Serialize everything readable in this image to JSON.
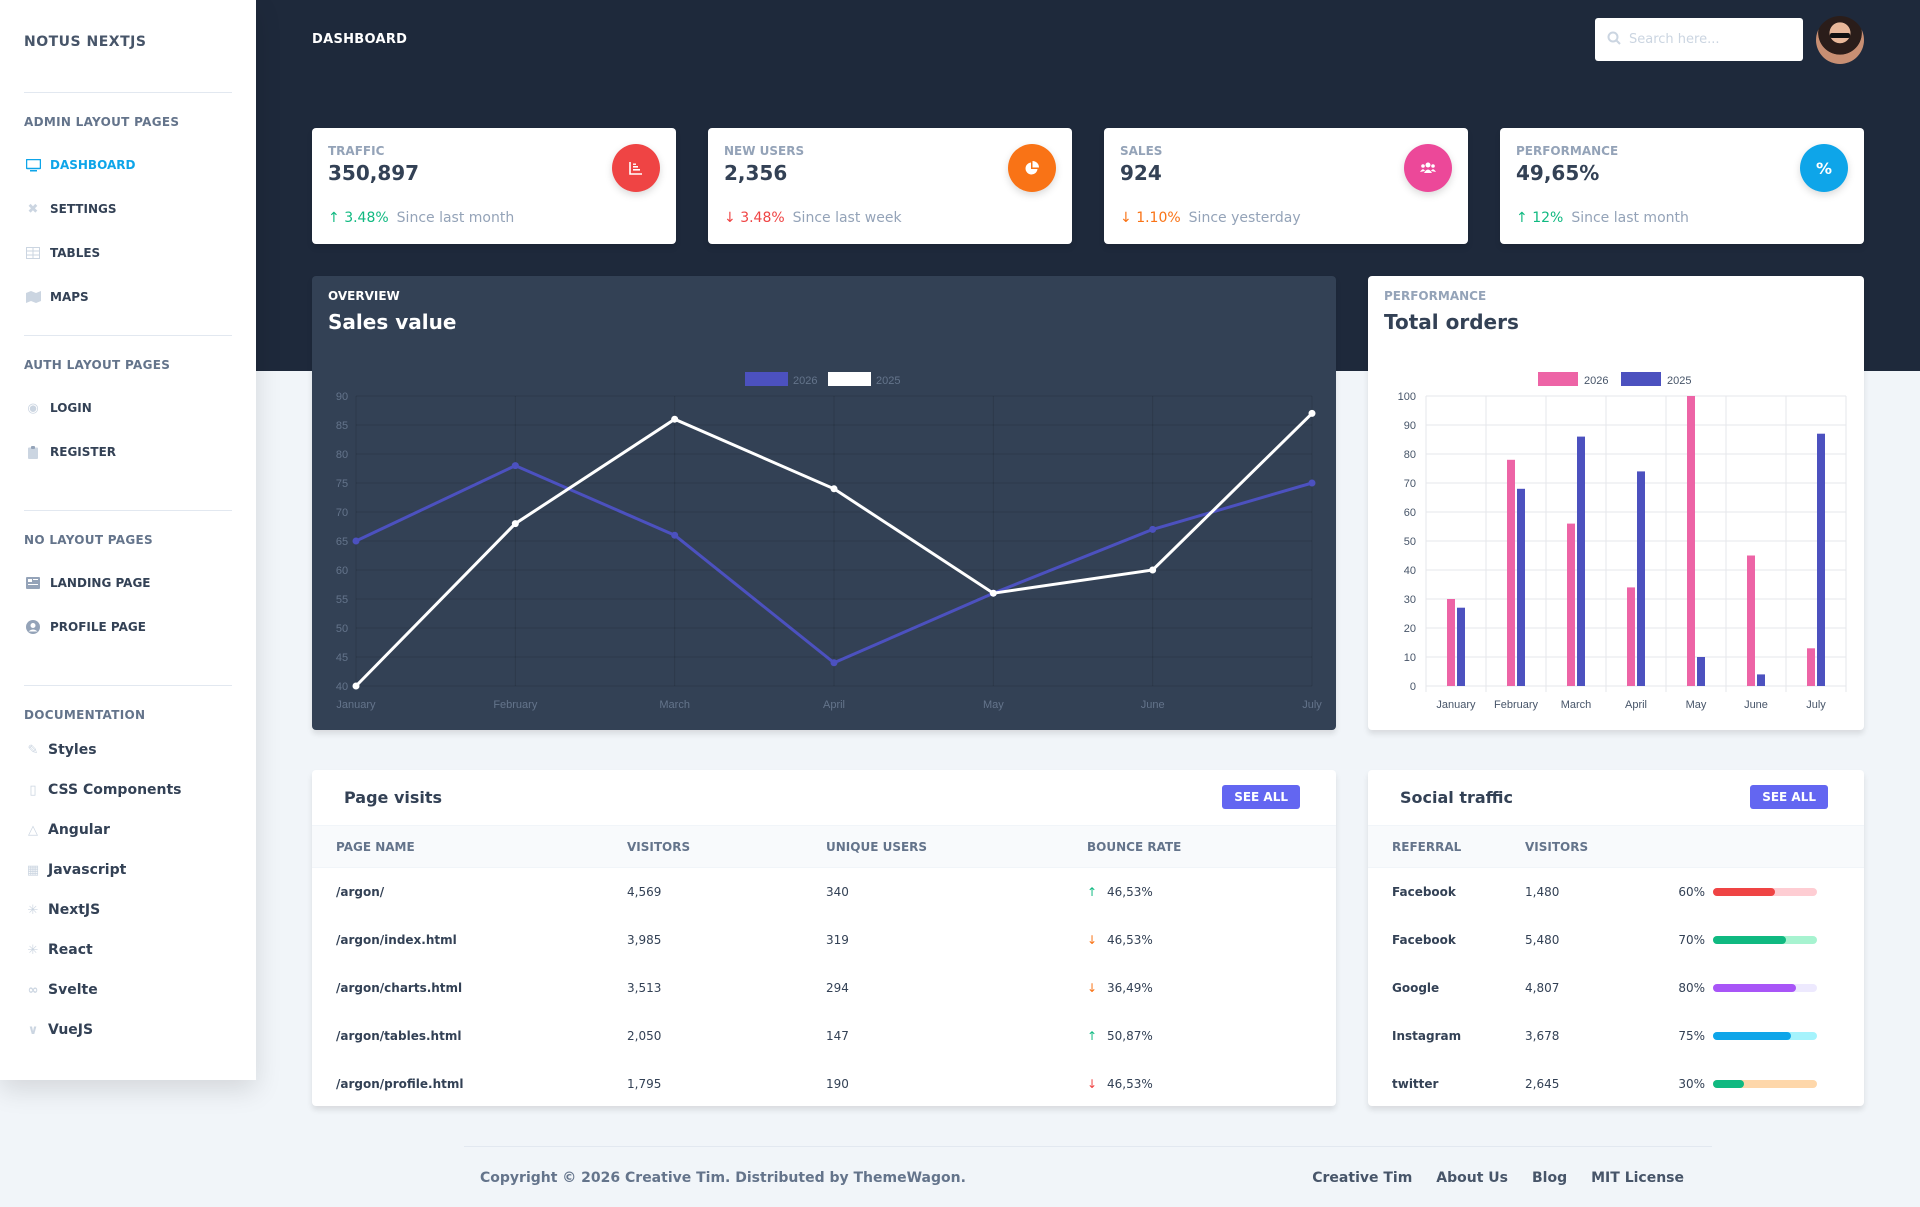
{
  "brand": "NOTUS NEXTJS",
  "sidebar": {
    "sections": [
      {
        "heading": "ADMIN LAYOUT PAGES",
        "items": [
          {
            "label": "DASHBOARD",
            "icon": "monitor-icon",
            "active": true
          },
          {
            "label": "SETTINGS",
            "icon": "tools-icon"
          },
          {
            "label": "TABLES",
            "icon": "table-icon"
          },
          {
            "label": "MAPS",
            "icon": "map-icon"
          }
        ]
      },
      {
        "heading": "AUTH LAYOUT PAGES",
        "items": [
          {
            "label": "LOGIN",
            "icon": "fingerprint-icon"
          },
          {
            "label": "REGISTER",
            "icon": "clipboard-icon"
          }
        ]
      },
      {
        "heading": "NO LAYOUT PAGES",
        "items": [
          {
            "label": "LANDING PAGE",
            "icon": "newspaper-icon"
          },
          {
            "label": "PROFILE PAGE",
            "icon": "user-circle-icon"
          }
        ]
      }
    ],
    "documentation": {
      "heading": "DOCUMENTATION",
      "items": [
        {
          "label": "Styles",
          "icon": "paint-brush-icon"
        },
        {
          "label": "CSS Components",
          "icon": "css3-icon"
        },
        {
          "label": "Angular",
          "icon": "angular-icon"
        },
        {
          "label": "Javascript",
          "icon": "js-icon"
        },
        {
          "label": "NextJS",
          "icon": "react-icon"
        },
        {
          "label": "React",
          "icon": "react-icon"
        },
        {
          "label": "Svelte",
          "icon": "link-icon"
        },
        {
          "label": "VueJS",
          "icon": "vue-icon"
        }
      ]
    }
  },
  "header": {
    "title": "DASHBOARD",
    "search_placeholder": "Search here..."
  },
  "stats": [
    {
      "label": "TRAFFIC",
      "value": "350,897",
      "delta": "3.48%",
      "direction": "up",
      "note": "Since last month",
      "icon": "chart-bar-icon",
      "color": "#ef4444"
    },
    {
      "label": "NEW USERS",
      "value": "2,356",
      "delta": "3.48%",
      "direction": "down",
      "note": "Since last week",
      "icon": "chart-pie-icon",
      "color": "#f97316"
    },
    {
      "label": "SALES",
      "value": "924",
      "delta": "1.10%",
      "direction": "down",
      "note": "Since yesterday",
      "icon": "users-icon",
      "color": "#ec4899"
    },
    {
      "label": "PERFORMANCE",
      "value": "49,65%",
      "delta": "12%",
      "direction": "up",
      "note": "Since last month",
      "icon": "percent-icon",
      "color": "#0ea5e9"
    }
  ],
  "overview": {
    "subtitle": "OVERVIEW",
    "title": "Sales value"
  },
  "performance": {
    "subtitle": "PERFORMANCE",
    "title": "Total orders"
  },
  "chart_data": [
    {
      "type": "line",
      "title": "Sales value",
      "categories": [
        "January",
        "February",
        "March",
        "April",
        "May",
        "June",
        "July"
      ],
      "series": [
        {
          "name": "2026",
          "color": "#4c51bf",
          "values": [
            65,
            78,
            66,
            44,
            56,
            67,
            75
          ]
        },
        {
          "name": "2025",
          "color": "#ffffff",
          "values": [
            40,
            68,
            86,
            74,
            56,
            60,
            87
          ]
        }
      ],
      "ylim": [
        40,
        90
      ],
      "yticks": [
        40,
        45,
        50,
        55,
        60,
        65,
        70,
        75,
        80,
        85,
        90
      ],
      "grid": true,
      "legend": "top-center"
    },
    {
      "type": "bar",
      "title": "Total orders",
      "categories": [
        "January",
        "February",
        "March",
        "April",
        "May",
        "June",
        "July"
      ],
      "series": [
        {
          "name": "2026",
          "color": "#ed64a6",
          "values": [
            30,
            78,
            56,
            34,
            100,
            45,
            13
          ]
        },
        {
          "name": "2025",
          "color": "#4c51bf",
          "values": [
            27,
            68,
            86,
            74,
            10,
            4,
            87
          ]
        }
      ],
      "ylim": [
        0,
        100
      ],
      "yticks": [
        0,
        10,
        20,
        30,
        40,
        50,
        60,
        70,
        80,
        90,
        100
      ],
      "grid": true,
      "legend": "top-center"
    }
  ],
  "page_visits": {
    "title": "Page visits",
    "button": "SEE ALL",
    "columns": [
      "PAGE NAME",
      "VISITORS",
      "UNIQUE USERS",
      "BOUNCE RATE"
    ],
    "rows": [
      {
        "page": "/argon/",
        "visitors": "4,569",
        "unique": "340",
        "bounce": "46,53%",
        "direction": "up"
      },
      {
        "page": "/argon/index.html",
        "visitors": "3,985",
        "unique": "319",
        "bounce": "46,53%",
        "direction": "down-orange"
      },
      {
        "page": "/argon/charts.html",
        "visitors": "3,513",
        "unique": "294",
        "bounce": "36,49%",
        "direction": "down-orange"
      },
      {
        "page": "/argon/tables.html",
        "visitors": "2,050",
        "unique": "147",
        "bounce": "50,87%",
        "direction": "up"
      },
      {
        "page": "/argon/profile.html",
        "visitors": "1,795",
        "unique": "190",
        "bounce": "46,53%",
        "direction": "down"
      }
    ]
  },
  "social_traffic": {
    "title": "Social traffic",
    "button": "SEE ALL",
    "columns": [
      "REFERRAL",
      "VISITORS"
    ],
    "rows": [
      {
        "referral": "Facebook",
        "visitors": "1,480",
        "percent": "60%",
        "fill": 0.6,
        "color": "#ef4444",
        "track": "#fecdd3"
      },
      {
        "referral": "Facebook",
        "visitors": "5,480",
        "percent": "70%",
        "fill": 0.7,
        "color": "#10b981",
        "track": "#a7f3d0"
      },
      {
        "referral": "Google",
        "visitors": "4,807",
        "percent": "80%",
        "fill": 0.8,
        "color": "#a855f7",
        "track": "#ede9fe"
      },
      {
        "referral": "Instagram",
        "visitors": "3,678",
        "percent": "75%",
        "fill": 0.75,
        "color": "#0ea5e9",
        "track": "#a5f3fc"
      },
      {
        "referral": "twitter",
        "visitors": "2,645",
        "percent": "30%",
        "fill": 0.3,
        "color": "#10b981",
        "track": "#fed7aa"
      }
    ]
  },
  "footer": {
    "copyright": "Copyright © 2026 Creative Tim.  Distributed by ThemeWagon.",
    "links": [
      "Creative Tim",
      "About Us",
      "Blog",
      "MIT License"
    ]
  }
}
